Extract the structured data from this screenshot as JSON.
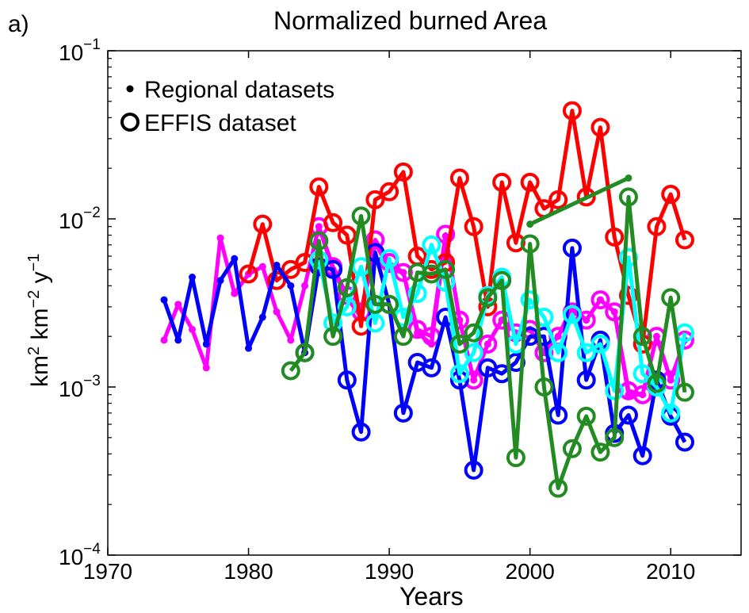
{
  "panel_label": "a)",
  "chart_data": {
    "type": "line",
    "title": "Normalized burned Area",
    "xlabel": "Years",
    "ylabel_parts": [
      "km",
      "2",
      " km",
      "−2",
      " y",
      "−1"
    ],
    "yscale": "log",
    "xlim": [
      1970,
      2015
    ],
    "ylim": [
      0.0001,
      0.1
    ],
    "x_ticks": [
      1970,
      1980,
      1990,
      2000,
      2010
    ],
    "x_tick_labels": [
      "1970",
      "1980",
      "1990",
      "2000",
      "2010"
    ],
    "y_ticks": [
      0.0001,
      0.001,
      0.01,
      0.1
    ],
    "y_tick_labels": [
      {
        "base": "10",
        "exp": "−4"
      },
      {
        "base": "10",
        "exp": "−3"
      },
      {
        "base": "10",
        "exp": "−2"
      },
      {
        "base": "10",
        "exp": "−1"
      }
    ],
    "grid": false,
    "legend": {
      "position": "top-left",
      "entries": [
        {
          "marker": "dot",
          "label": "Regional datasets"
        },
        {
          "marker": "circle",
          "label": "EFFIS dataset"
        }
      ]
    },
    "series": [
      {
        "color": "#ff00ff",
        "marker": "dot",
        "x": [
          1974,
          1975,
          1976,
          1977,
          1978,
          1979,
          1980,
          1981,
          1982,
          1983,
          1984,
          1985,
          1986,
          1987,
          1988,
          1989,
          1990,
          1991,
          1992,
          1993,
          1994,
          1995,
          1996,
          1997,
          1998,
          1999,
          2000,
          2001,
          2002,
          2003,
          2004,
          2005,
          2006,
          2007,
          2008,
          2009,
          2010,
          2011
        ],
        "y": [
          0.0019,
          0.0031,
          0.0022,
          0.0013,
          0.0077,
          0.0036,
          0.0047,
          0.0052,
          0.0028,
          0.0019,
          0.004,
          0.009,
          0.005,
          0.0034,
          0.0026,
          0.0072,
          0.005,
          0.0048,
          0.0021,
          0.0018,
          0.0079,
          0.0025,
          0.0011,
          0.0018,
          0.0025,
          0.0021,
          0.0022,
          0.0016,
          0.002,
          0.003,
          0.0025,
          0.0033,
          0.0028,
          0.0009,
          0.0009,
          0.002,
          0.0011,
          0.0019
        ]
      },
      {
        "color": "#ff00ff",
        "marker": "circle",
        "x": [
          1985,
          1986,
          1987,
          1988,
          1989,
          1990,
          1991,
          1992,
          1993,
          1994,
          1995,
          1996,
          1997,
          1998,
          1999,
          2000,
          2001,
          2002,
          2003,
          2004,
          2005,
          2006,
          2007,
          2008,
          2009,
          2010,
          2011
        ],
        "y": [
          0.009,
          0.0052,
          0.0035,
          0.0028,
          0.0075,
          0.0055,
          0.0048,
          0.0022,
          0.002,
          0.0081,
          0.0025,
          0.0011,
          0.0018,
          0.0025,
          0.0021,
          0.0022,
          0.0016,
          0.002,
          0.0028,
          0.0025,
          0.0033,
          0.0028,
          0.00095,
          0.0009,
          0.002,
          0.0011,
          0.0019
        ]
      },
      {
        "color": "#ff0000",
        "marker": "circle",
        "x": [
          1980,
          1981,
          1982,
          1983,
          1984,
          1985,
          1986,
          1987,
          1988,
          1989,
          1990,
          1991,
          1992,
          1993,
          1994,
          1995,
          1996,
          1997,
          1998,
          1999,
          2000,
          2001,
          2002,
          2003,
          2004,
          2005,
          2006,
          2007,
          2008,
          2009,
          2010,
          2011
        ],
        "y": [
          0.0047,
          0.0093,
          0.0043,
          0.005,
          0.0055,
          0.0155,
          0.0095,
          0.008,
          0.0023,
          0.013,
          0.0145,
          0.019,
          0.006,
          0.005,
          0.0055,
          0.0175,
          0.009,
          0.003,
          0.0165,
          0.0072,
          0.0165,
          0.0115,
          0.013,
          0.044,
          0.0135,
          0.035,
          0.0078,
          0.0035,
          0.0018,
          0.009,
          0.014,
          0.0075
        ]
      },
      {
        "color": "#0000ff",
        "marker": "dot",
        "x": [
          1974,
          1975,
          1976,
          1977,
          1978,
          1979,
          1980,
          1981,
          1982,
          1983,
          1984
        ],
        "y": [
          0.0033,
          0.0019,
          0.0045,
          0.0018,
          0.0043,
          0.0058,
          0.0017,
          0.0026,
          0.0053,
          0.004,
          0.0016
        ]
      },
      {
        "color": "#0000ff",
        "marker": "circle",
        "x": [
          1984,
          1985,
          1986,
          1987,
          1988,
          1989,
          1990,
          1991,
          1992,
          1993,
          1994,
          1995,
          1996,
          1997,
          1998,
          1999,
          2000,
          2001,
          2002,
          2003,
          2004,
          2005,
          2006,
          2007,
          2008,
          2009,
          2010,
          2011
        ],
        "y": [
          0.0016,
          0.0052,
          0.005,
          0.0011,
          0.00054,
          0.0063,
          0.0031,
          0.0007,
          0.0014,
          0.0013,
          0.0026,
          0.0011,
          0.00032,
          0.0013,
          0.0012,
          0.0014,
          0.002,
          0.002,
          0.00068,
          0.0067,
          0.0011,
          0.0019,
          0.00053,
          0.00068,
          0.00039,
          0.0011,
          0.00067,
          0.00047
        ]
      },
      {
        "color": "#00ffff",
        "marker": "circle",
        "x": [
          1985,
          1986,
          1987,
          1988,
          1989,
          1990,
          1991,
          1992,
          1993,
          1994,
          1995,
          1996,
          1997,
          1998,
          1999,
          2000,
          2001,
          2002,
          2003,
          2004,
          2005,
          2006,
          2007,
          2008,
          2009,
          2010,
          2011
        ],
        "y": [
          0.0057,
          0.0024,
          0.003,
          0.0052,
          0.0024,
          0.0058,
          0.0026,
          0.0036,
          0.007,
          0.0042,
          0.0012,
          0.0016,
          0.0035,
          0.0045,
          0.0018,
          0.0033,
          0.0026,
          0.0016,
          0.0027,
          0.0016,
          0.0018,
          0.00095,
          0.0059,
          0.0012,
          0.001,
          0.0007,
          0.0021
        ]
      },
      {
        "color": "#228b22",
        "marker": "circle",
        "x": [
          1983,
          1984,
          1985,
          1986,
          1987,
          1988,
          1989,
          1990,
          1991,
          1992,
          1993,
          1994,
          1995,
          1996,
          1997,
          1998,
          1999,
          2000,
          2001,
          2002,
          2003,
          2004,
          2005,
          2006,
          2007,
          2008,
          2009,
          2010,
          2011
        ],
        "y": [
          0.00125,
          0.0016,
          0.0074,
          0.002,
          0.0039,
          0.0104,
          0.0031,
          0.0031,
          0.002,
          0.0048,
          0.0047,
          0.005,
          0.0018,
          0.0021,
          0.0034,
          0.0043,
          0.00038,
          0.0071,
          0.001,
          0.00025,
          0.00043,
          0.00067,
          0.00041,
          0.0005,
          0.0135,
          0.002,
          0.00105,
          0.0034,
          0.00093
        ]
      },
      {
        "color": "#228b22",
        "marker": "dot",
        "x": [
          2000,
          2007
        ],
        "y": [
          0.0093,
          0.0175
        ]
      }
    ]
  }
}
